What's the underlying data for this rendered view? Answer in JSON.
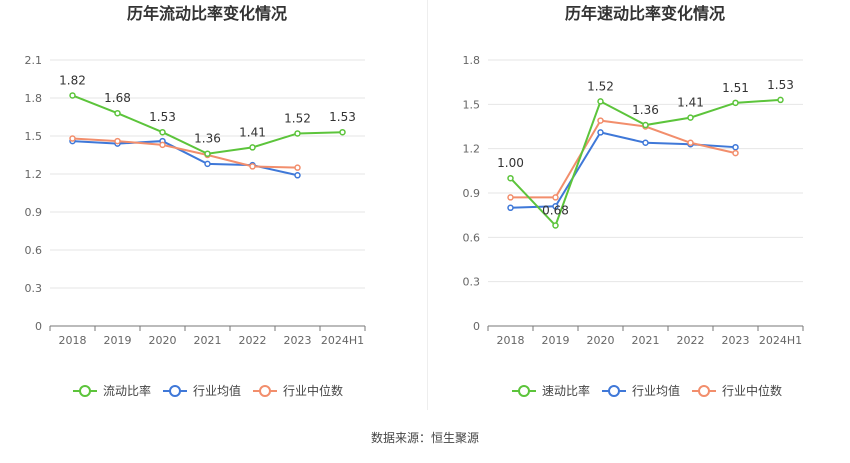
{
  "source_text": "数据来源：恒生聚源",
  "chart_data": [
    {
      "type": "line",
      "title": "历年流动比率变化情况",
      "categories": [
        "2018",
        "2019",
        "2020",
        "2021",
        "2022",
        "2023",
        "2024H1"
      ],
      "ylim": [
        0,
        2.1
      ],
      "yticks": [
        "0",
        "0.3",
        "0.6",
        "0.9",
        "1.2",
        "1.5",
        "1.8",
        "2.1"
      ],
      "grid": true,
      "legend_position": "bottom",
      "series": [
        {
          "name": "流动比率",
          "color": "#5cc43b",
          "values": [
            1.82,
            1.68,
            1.53,
            1.36,
            1.41,
            1.52,
            1.53
          ],
          "labels": [
            "1.82",
            "1.68",
            "1.53",
            "1.36",
            "1.41",
            "1.52",
            "1.53"
          ]
        },
        {
          "name": "行业均值",
          "color": "#3f78d8",
          "values": [
            1.46,
            1.44,
            1.46,
            1.28,
            1.27,
            1.19,
            null
          ]
        },
        {
          "name": "行业中位数",
          "color": "#f28e6c",
          "values": [
            1.48,
            1.46,
            1.43,
            1.35,
            1.26,
            1.25,
            null
          ]
        }
      ]
    },
    {
      "type": "line",
      "title": "历年速动比率变化情况",
      "categories": [
        "2018",
        "2019",
        "2020",
        "2021",
        "2022",
        "2023",
        "2024H1"
      ],
      "ylim": [
        0,
        1.8
      ],
      "yticks": [
        "0",
        "0.3",
        "0.6",
        "0.9",
        "1.2",
        "1.5",
        "1.8"
      ],
      "grid": true,
      "legend_position": "bottom",
      "series": [
        {
          "name": "速动比率",
          "color": "#5cc43b",
          "values": [
            1.0,
            0.68,
            1.52,
            1.36,
            1.41,
            1.51,
            1.53
          ],
          "labels": [
            "1.00",
            "0.68",
            "1.52",
            "1.36",
            "1.41",
            "1.51",
            "1.53"
          ]
        },
        {
          "name": "行业均值",
          "color": "#3f78d8",
          "values": [
            0.8,
            0.81,
            1.31,
            1.24,
            1.23,
            1.21,
            null
          ]
        },
        {
          "name": "行业中位数",
          "color": "#f28e6c",
          "values": [
            0.87,
            0.87,
            1.39,
            1.35,
            1.24,
            1.17,
            null
          ]
        }
      ]
    }
  ]
}
